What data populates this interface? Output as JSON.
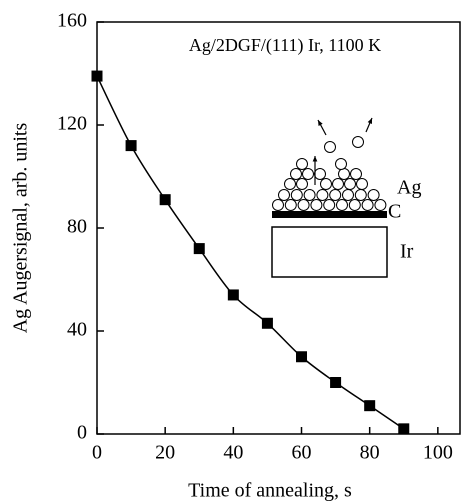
{
  "chart_data": {
    "type": "line",
    "title": "Ag/2DGF/(111) Ir, 1100 K",
    "xlabel": "Time of annealing, s",
    "ylabel": "Ag Augersignal, arb. units",
    "x": [
      0,
      10,
      20,
      30,
      40,
      50,
      60,
      70,
      80,
      90
    ],
    "series": [
      {
        "name": "Ag",
        "color": "#000000",
        "values": [
          139,
          112,
          91,
          72,
          54,
          43,
          30,
          20,
          11,
          2
        ]
      }
    ],
    "xlim": [
      0,
      106.5
    ],
    "xticks": [
      0,
      20,
      40,
      60,
      80,
      100
    ],
    "ylim": [
      0,
      160
    ],
    "yticks": [
      0,
      40,
      80,
      120,
      160
    ],
    "annotations": [
      "Ag",
      "C",
      "Ir"
    ]
  }
}
